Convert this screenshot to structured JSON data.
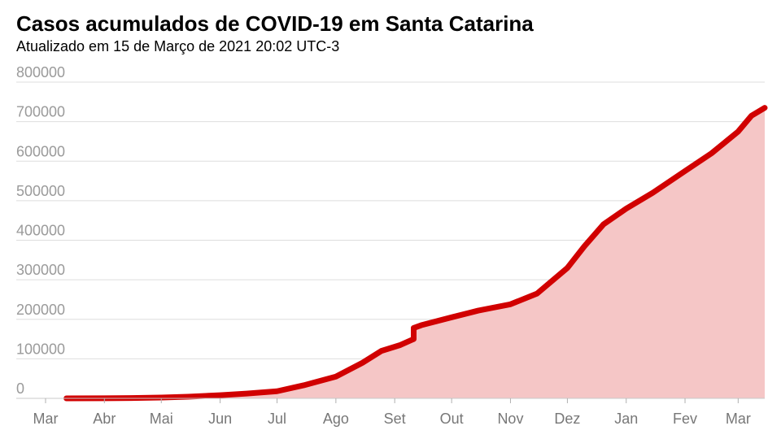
{
  "header": {
    "title": "Casos acumulados de COVID-19 em Santa Catarina",
    "subtitle": "Atualizado em 15 de Março de 2021 20:02 UTC-3"
  },
  "colors": {
    "line": "#d10000",
    "area": "#f5c6c6",
    "grid": "#dedede"
  },
  "chart_data": {
    "type": "area",
    "title": "Casos acumulados de COVID-19 em Santa Catarina",
    "subtitle": "Atualizado em 15 de Março de 2021 20:02 UTC-3",
    "xlabel": "",
    "ylabel": "",
    "xlim": [
      "2020-03-01",
      "2021-03-15"
    ],
    "ylim": [
      0,
      800000
    ],
    "grid": true,
    "legend": "none",
    "y_ticks": [
      0,
      100000,
      200000,
      300000,
      400000,
      500000,
      600000,
      700000,
      800000
    ],
    "x_ticks": [
      {
        "label": "Mar",
        "date": "2020-03-01"
      },
      {
        "label": "Abr",
        "date": "2020-04-01"
      },
      {
        "label": "Mai",
        "date": "2020-05-01"
      },
      {
        "label": "Jun",
        "date": "2020-06-01"
      },
      {
        "label": "Jul",
        "date": "2020-07-01"
      },
      {
        "label": "Ago",
        "date": "2020-08-01"
      },
      {
        "label": "Set",
        "date": "2020-09-01"
      },
      {
        "label": "Out",
        "date": "2020-10-01"
      },
      {
        "label": "Nov",
        "date": "2020-11-01"
      },
      {
        "label": "Dez",
        "date": "2020-12-01"
      },
      {
        "label": "Jan",
        "date": "2021-01-01"
      },
      {
        "label": "Fev",
        "date": "2021-02-01"
      },
      {
        "label": "Mar",
        "date": "2021-03-01"
      }
    ],
    "series": [
      {
        "points": [
          [
            "2020-03-12",
            0
          ],
          [
            "2020-04-01",
            300
          ],
          [
            "2020-04-15",
            800
          ],
          [
            "2020-05-01",
            2000
          ],
          [
            "2020-05-15",
            4000
          ],
          [
            "2020-06-01",
            8000
          ],
          [
            "2020-06-15",
            12000
          ],
          [
            "2020-07-01",
            18000
          ],
          [
            "2020-07-15",
            33000
          ],
          [
            "2020-08-01",
            55000
          ],
          [
            "2020-08-15",
            90000
          ],
          [
            "2020-08-25",
            120000
          ],
          [
            "2020-09-04",
            135000
          ],
          [
            "2020-09-11",
            150000
          ],
          [
            "2020-09-11",
            178000
          ],
          [
            "2020-09-15",
            185000
          ],
          [
            "2020-10-01",
            205000
          ],
          [
            "2020-10-15",
            222000
          ],
          [
            "2020-11-01",
            238000
          ],
          [
            "2020-11-15",
            265000
          ],
          [
            "2020-12-01",
            330000
          ],
          [
            "2020-12-10",
            385000
          ],
          [
            "2020-12-20",
            440000
          ],
          [
            "2021-01-01",
            480000
          ],
          [
            "2021-01-15",
            520000
          ],
          [
            "2021-02-01",
            575000
          ],
          [
            "2021-02-15",
            620000
          ],
          [
            "2021-03-01",
            675000
          ],
          [
            "2021-03-08",
            715000
          ],
          [
            "2021-03-15",
            735000
          ]
        ]
      }
    ]
  }
}
